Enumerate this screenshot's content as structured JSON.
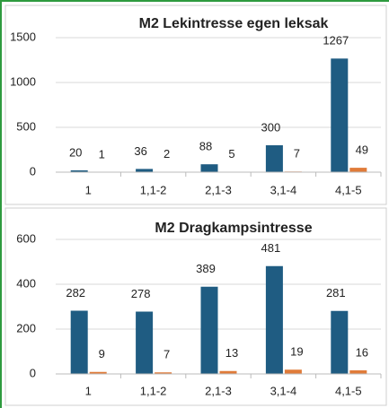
{
  "chart_data": [
    {
      "type": "bar",
      "title": "M2 Lekintresse egen leksak",
      "categories": [
        "1",
        "1,1-2",
        "2,1-3",
        "3,1-4",
        "4,1-5"
      ],
      "series": [
        {
          "color": "#1f5c82",
          "values": [
            20,
            36,
            88,
            300,
            1267
          ]
        },
        {
          "color": "#e07b39",
          "values": [
            1,
            2,
            5,
            7,
            49
          ]
        }
      ],
      "ylim": [
        0,
        1500
      ],
      "yticks": [
        0,
        500,
        1000,
        1500
      ],
      "grid": true
    },
    {
      "type": "bar",
      "title": "M2 Dragkampsintresse",
      "categories": [
        "1",
        "1,1-2",
        "2,1-3",
        "3,1-4",
        "4,1-5"
      ],
      "series": [
        {
          "color": "#1f5c82",
          "values": [
            282,
            278,
            389,
            481,
            281
          ]
        },
        {
          "color": "#e07b39",
          "values": [
            9,
            7,
            13,
            19,
            16
          ]
        }
      ],
      "ylim": [
        0,
        600
      ],
      "yticks": [
        0,
        200,
        400,
        600
      ],
      "grid": true
    }
  ]
}
